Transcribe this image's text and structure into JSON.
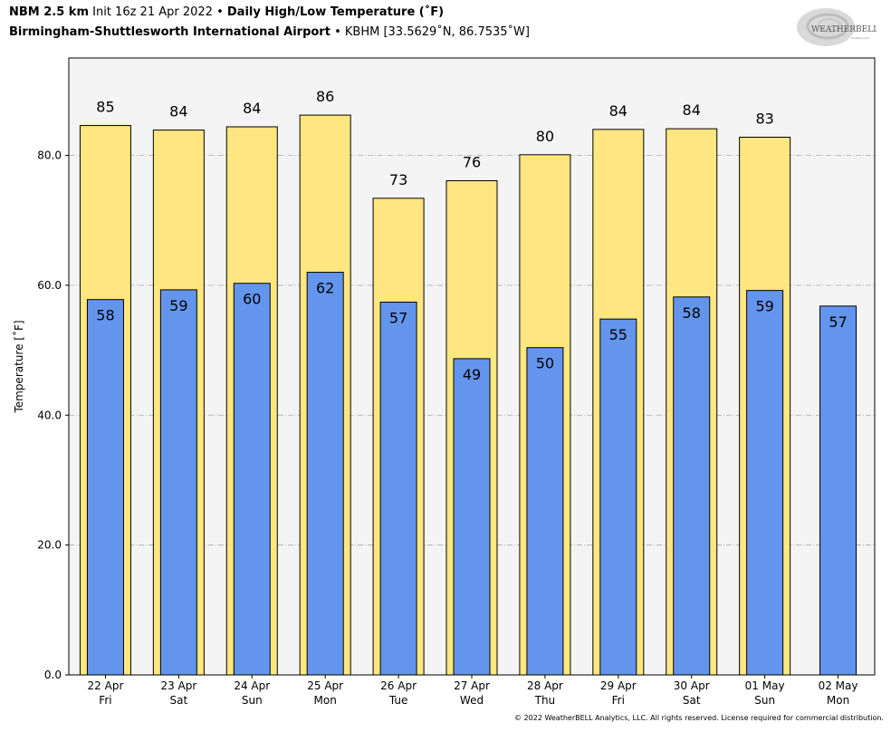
{
  "header": {
    "model": "NBM 2.5 km",
    "init": "Init 16z 21 Apr 2022",
    "sep1": "•",
    "product": "Daily High/Low Temperature (˚F)",
    "station": "Birmingham-Shuttlesworth International Airport",
    "sep2": "•",
    "station_info": "KBHM [33.5629˚N, 86.7535˚W]"
  },
  "logo": {
    "text_main": "WEATHERBELL",
    "text_sub": "Analytics LLC"
  },
  "footer": {
    "copyright": "© 2022 WeatherBELL Analytics, LLC. All rights reserved. License required for commercial distribution."
  },
  "chart_data": {
    "type": "bar",
    "categories": [
      "22 Apr",
      "23 Apr",
      "24 Apr",
      "25 Apr",
      "26 Apr",
      "27 Apr",
      "28 Apr",
      "29 Apr",
      "30 Apr",
      "01 May",
      "02 May"
    ],
    "days": [
      "Fri",
      "Sat",
      "Sun",
      "Mon",
      "Tue",
      "Wed",
      "Thu",
      "Fri",
      "Sat",
      "Sun",
      "Mon"
    ],
    "series": [
      {
        "name": "High",
        "color": "#ffe680",
        "values": [
          84.6,
          83.9,
          84.4,
          86.2,
          73.4,
          76.1,
          80.1,
          84.0,
          84.1,
          82.8,
          null
        ],
        "labels": [
          "85",
          "84",
          "84",
          "86",
          "73",
          "76",
          "80",
          "84",
          "84",
          "83",
          ""
        ]
      },
      {
        "name": "Low",
        "color": "#6495ed",
        "values": [
          57.8,
          59.3,
          60.3,
          62.0,
          57.4,
          48.7,
          50.4,
          54.8,
          58.2,
          59.2,
          56.8
        ],
        "labels": [
          "58",
          "59",
          "60",
          "62",
          "57",
          "49",
          "50",
          "55",
          "58",
          "59",
          "57"
        ]
      }
    ],
    "ylabel": "Temperature [˚F]",
    "ylim": [
      0,
      95
    ],
    "yticks": [
      0,
      20,
      40,
      60,
      80
    ],
    "ytick_labels": [
      "0.0",
      "20.0",
      "40.0",
      "60.0",
      "80.0"
    ],
    "grid": true,
    "plot_background": "#f4f4f4"
  }
}
